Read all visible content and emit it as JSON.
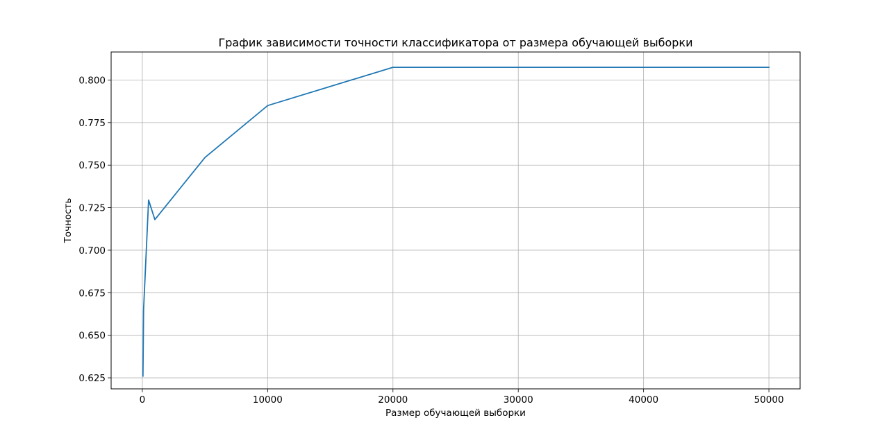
{
  "chart_data": {
    "type": "line",
    "title": "График зависимости точности классификатора от размера обучающей выборки",
    "xlabel": "Размер обучающей выборки",
    "ylabel": "Точность",
    "xlim": [
      -2490,
      52490
    ],
    "ylim": [
      0.6185,
      0.8165
    ],
    "xticks": [
      0,
      10000,
      20000,
      30000,
      40000,
      50000
    ],
    "xtick_labels": [
      "0",
      "10000",
      "20000",
      "30000",
      "40000",
      "50000"
    ],
    "yticks": [
      0.625,
      0.65,
      0.675,
      0.7,
      0.725,
      0.75,
      0.775,
      0.8
    ],
    "ytick_labels": [
      "0.625",
      "0.650",
      "0.675",
      "0.700",
      "0.725",
      "0.750",
      "0.775",
      "0.800"
    ],
    "grid": true,
    "series": [
      {
        "color": "#1f77b4",
        "x": [
          50,
          100,
          500,
          1000,
          5000,
          10000,
          20000,
          50000
        ],
        "y": [
          0.626,
          0.665,
          0.7295,
          0.718,
          0.7545,
          0.785,
          0.8075,
          0.8075
        ]
      }
    ]
  }
}
